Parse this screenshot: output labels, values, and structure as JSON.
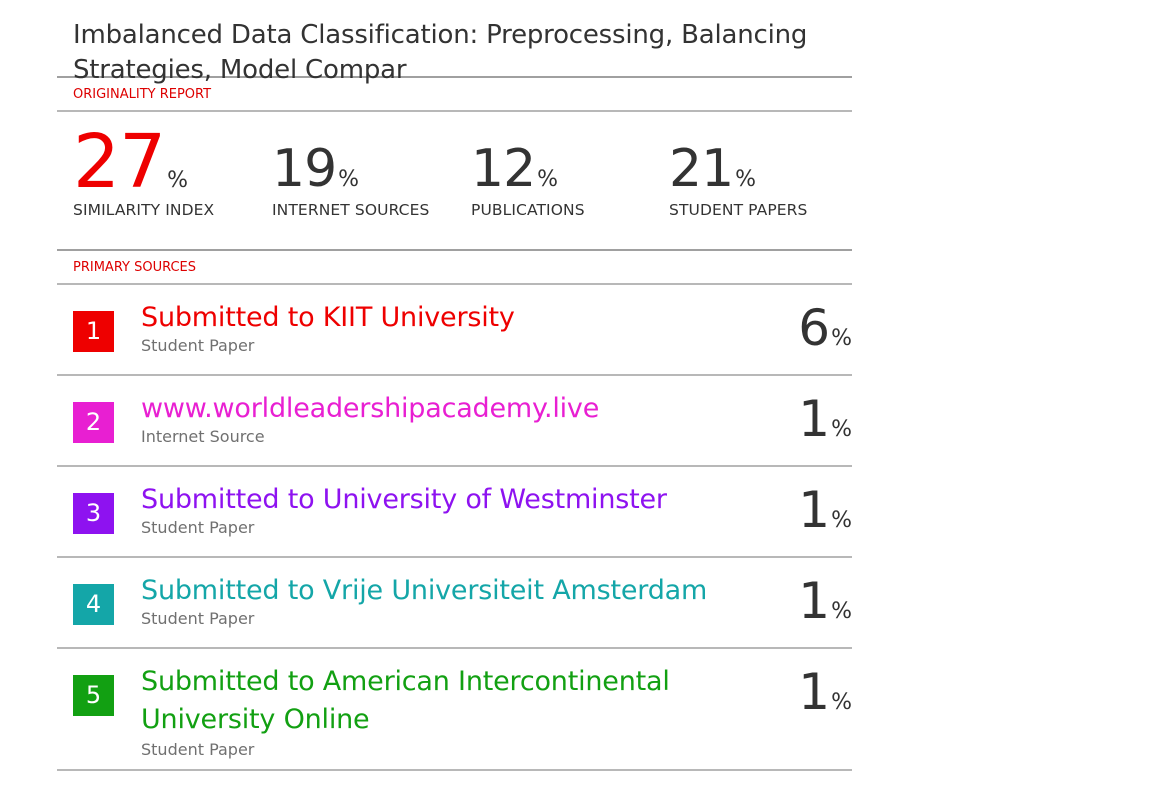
{
  "document": {
    "title": "Imbalanced Data Classification: Preprocessing, Balancing Strategies, Model Compar"
  },
  "originality": {
    "label": "ORIGINALITY REPORT",
    "stats": [
      {
        "value": "27",
        "unit": "%",
        "caption": "SIMILARITY INDEX"
      },
      {
        "value": "19",
        "unit": "%",
        "caption": "INTERNET SOURCES"
      },
      {
        "value": "12",
        "unit": "%",
        "caption": "PUBLICATIONS"
      },
      {
        "value": "21",
        "unit": "%",
        "caption": "STUDENT PAPERS"
      }
    ]
  },
  "primary_sources": {
    "label": "PRIMARY SOURCES",
    "items": [
      {
        "rank": "1",
        "title": "Submitted to KIIT University",
        "type": "Student Paper",
        "percent": "6",
        "unit": "%",
        "color": "#ee0000"
      },
      {
        "rank": "2",
        "title": "www.worldleadershipacademy.live",
        "type": "Internet Source",
        "percent": "1",
        "unit": "%",
        "color": "#e81fd2"
      },
      {
        "rank": "3",
        "title": "Submitted to University of Westminster",
        "type": "Student Paper",
        "percent": "1",
        "unit": "%",
        "color": "#8e12f0"
      },
      {
        "rank": "4",
        "title": "Submitted to Vrije Universiteit Amsterdam",
        "type": "Student Paper",
        "percent": "1",
        "unit": "%",
        "color": "#14a6a8"
      },
      {
        "rank": "5",
        "title": "Submitted to American Intercontinental University Online",
        "type": "Student Paper",
        "percent": "1",
        "unit": "%",
        "color": "#12a012"
      }
    ]
  },
  "colors": {
    "accent_red": "#ee0000",
    "text": "#333333",
    "muted": "#707070",
    "rule": "#b8b8b8"
  }
}
